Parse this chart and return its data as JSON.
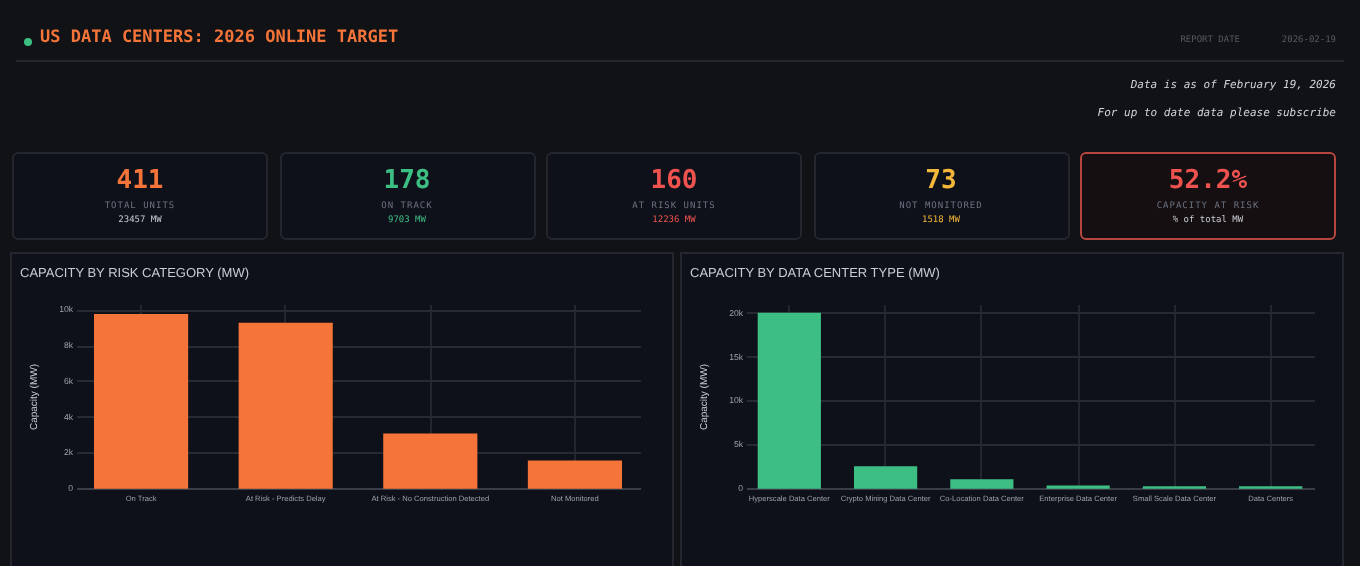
{
  "chart_data": [
    {
      "type": "other",
      "title": "US DATA CENTERS: 2026 ONLINE TARGET",
      "annotations": [
        "REPORT DATE",
        "2026-02-19",
        "Data is as of February 19, 2026",
        "For up to date data please subscribe"
      ]
    },
    {
      "type": "other",
      "title": "411",
      "subtitle": "TOTAL UNITS",
      "annotations": [
        "23457 MW"
      ]
    },
    {
      "type": "other",
      "title": "178",
      "subtitle": "ON TRACK",
      "annotations": [
        "9703 MW"
      ]
    },
    {
      "type": "other",
      "title": "160",
      "subtitle": "AT RISK UNITS",
      "annotations": [
        "12236 MW"
      ]
    },
    {
      "type": "other",
      "title": "73",
      "subtitle": "NOT MONITORED",
      "annotations": [
        "1518 MW"
      ]
    },
    {
      "type": "other",
      "title": "52.2%",
      "subtitle": "CAPACITY AT RISK",
      "annotations": [
        "% of total MW"
      ]
    },
    {
      "type": "bar",
      "title": "CAPACITY BY RISK CATEGORY (MW)",
      "ylabel": "Capacity (MW)",
      "categories": [
        "On Track",
        "At Risk - Predicts Delay",
        "At Risk - No Construction Detected",
        "Not Monitored"
      ],
      "values": [
        9700,
        9200,
        3000,
        1500
      ],
      "color": "#f47439",
      "ylim": [
        0,
        10300
      ],
      "yticks": [
        0,
        {
          "value": 2000,
          "label": "2k"
        },
        {
          "value": 4000,
          "label": "4k"
        },
        {
          "value": 6000,
          "label": "6k"
        },
        {
          "value": 8000,
          "label": "8k"
        },
        {
          "value": 10000,
          "label": "10k"
        }
      ],
      "grid": true
    },
    {
      "type": "bar",
      "title": "CAPACITY BY DATA CENTER TYPE (MW)",
      "ylabel": "Capacity (MW)",
      "categories": [
        "Hyperscale Data Center",
        "Crypto Mining Data Center",
        "Co-Location Data Center",
        "Enterprise Data Center",
        "Small Scale Data Center",
        "Data Centers"
      ],
      "values": [
        19900,
        2400,
        900,
        200,
        100,
        100
      ],
      "color": "#3dbf84",
      "ylim": [
        0,
        21000
      ],
      "yticks": [
        0,
        {
          "value": 5000,
          "label": "5k"
        },
        {
          "value": 10000,
          "label": "10k"
        },
        {
          "value": 15000,
          "label": "15k"
        },
        {
          "value": 20000,
          "label": "20k"
        }
      ],
      "grid": true
    }
  ]
}
